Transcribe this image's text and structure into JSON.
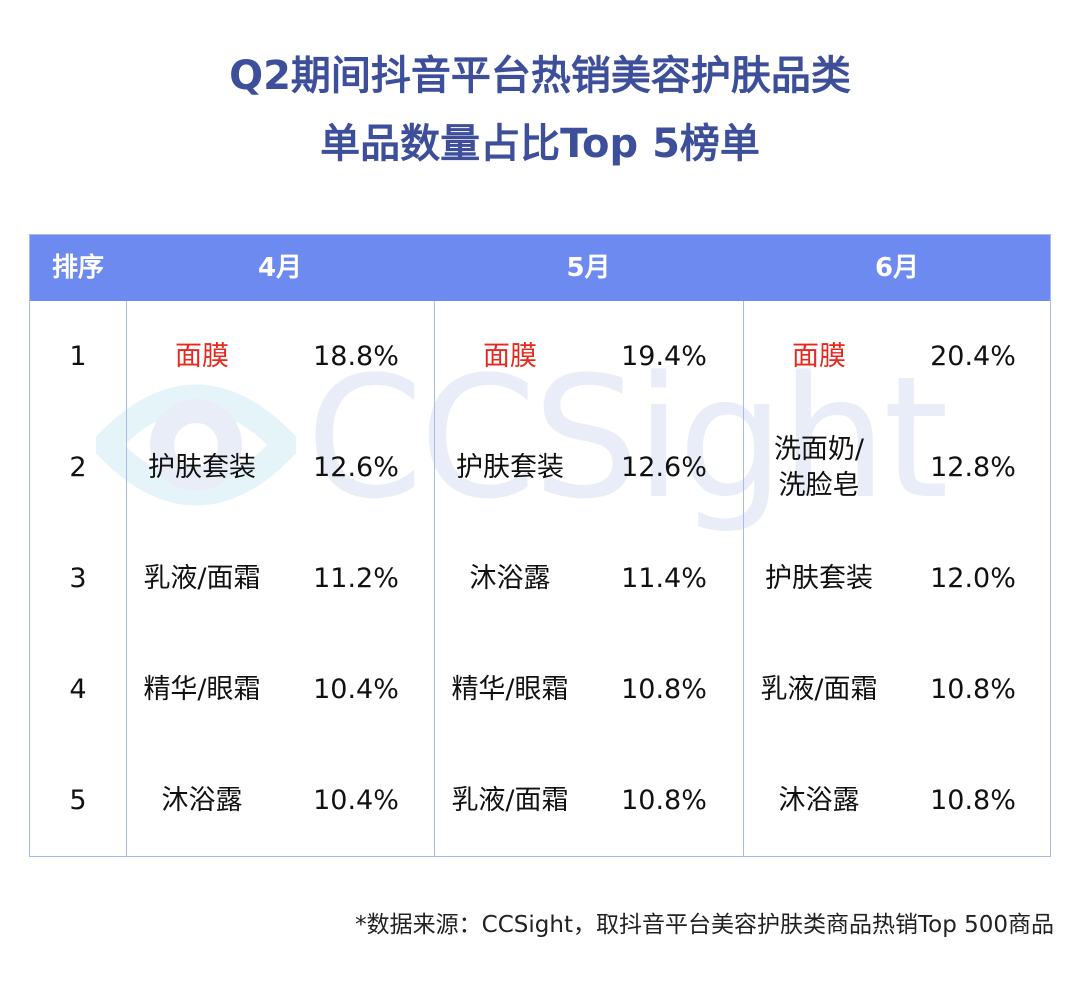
{
  "title_line1": "Q2期间抖音平台热销美容护肤品类",
  "title_line2": "单品数量占比Top 5榜单",
  "watermark": "CCSight",
  "colors": {
    "title": "#3d4f9a",
    "header_bg": "#6c8aef",
    "border": "#a9b8ef",
    "highlight": "#e8281f"
  },
  "chart_data": {
    "type": "table",
    "columns": [
      "排序",
      "4月",
      "5月",
      "6月"
    ],
    "rows": [
      {
        "rank": "1",
        "months": [
          {
            "category": "面膜",
            "share": "18.8%",
            "highlight": true
          },
          {
            "category": "面膜",
            "share": "19.4%",
            "highlight": true
          },
          {
            "category": "面膜",
            "share": "20.4%",
            "highlight": true
          }
        ]
      },
      {
        "rank": "2",
        "months": [
          {
            "category": "护肤套装",
            "share": "12.6%"
          },
          {
            "category": "护肤套装",
            "share": "12.6%"
          },
          {
            "category": "洗面奶/\n洗脸皂",
            "share": "12.8%"
          }
        ]
      },
      {
        "rank": "3",
        "months": [
          {
            "category": "乳液/面霜",
            "share": "11.2%"
          },
          {
            "category": "沐浴露",
            "share": "11.4%"
          },
          {
            "category": "护肤套装",
            "share": "12.0%"
          }
        ]
      },
      {
        "rank": "4",
        "months": [
          {
            "category": "精华/眼霜",
            "share": "10.4%"
          },
          {
            "category": "精华/眼霜",
            "share": "10.8%"
          },
          {
            "category": "乳液/面霜",
            "share": "10.8%"
          }
        ]
      },
      {
        "rank": "5",
        "months": [
          {
            "category": "沐浴露",
            "share": "10.4%"
          },
          {
            "category": "乳液/面霜",
            "share": "10.8%"
          },
          {
            "category": "沐浴露",
            "share": "10.8%"
          }
        ]
      }
    ]
  },
  "footnote": "*数据来源：CCSight，取抖音平台美容护肤类商品热销Top 500商品"
}
